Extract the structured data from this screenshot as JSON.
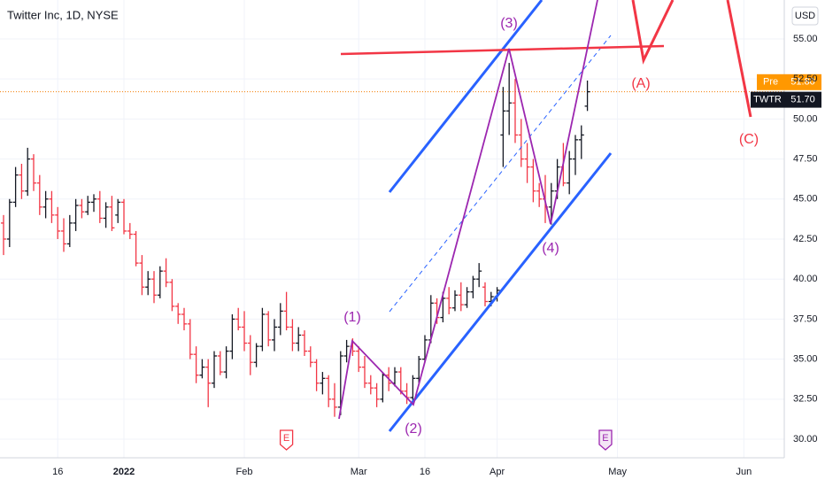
{
  "chart_data": {
    "type": "ohlc",
    "title": "Twitter Inc, 1D, NYSE",
    "currency": "USD",
    "up_color": "#131722",
    "down_color": "#f23645",
    "open": [
      43.5,
      42.5,
      44.8,
      46.5,
      45.5,
      47.5,
      46.0,
      44.5,
      45.0,
      44.0,
      43.0,
      42.2,
      43.5,
      44.6,
      44.2,
      44.8,
      45.0,
      43.8,
      44.5,
      44.0,
      44.8,
      43.0,
      42.8,
      41.0,
      39.5,
      40.0,
      39.0,
      40.5,
      39.8,
      38.3,
      37.8,
      37.2,
      35.3,
      34.0,
      34.5,
      33.5,
      35.2,
      34.2,
      35.5,
      37.5,
      37.0,
      36.0,
      34.8,
      35.8,
      37.8,
      36.2,
      37.0,
      38.0,
      37.0,
      36.0,
      36.5,
      35.5,
      34.8,
      33.5,
      33.8,
      32.5,
      32.0,
      35.2,
      35.8,
      35.5,
      34.5,
      33.5,
      33.2,
      32.5,
      34.0,
      33.5,
      34.2,
      33.0,
      32.6,
      33.8,
      35.0,
      36.2,
      38.5,
      37.6,
      38.8,
      38.2,
      39.0,
      38.4,
      39.2,
      40.0,
      39.5,
      38.6,
      38.9,
      49.0,
      50.5,
      51.0,
      49.0,
      47.5,
      47.0,
      45.5,
      45.0,
      44.5,
      45.5,
      47.0,
      46.0,
      47.5,
      48.7,
      50.8
    ],
    "high": [
      44.0,
      45.0,
      47.0,
      47.2,
      48.2,
      47.8,
      46.5,
      45.5,
      45.5,
      44.5,
      43.8,
      44.0,
      45.0,
      45.0,
      45.2,
      45.3,
      45.5,
      44.8,
      45.2,
      45.0,
      45.0,
      43.5,
      43.0,
      41.5,
      40.5,
      40.5,
      40.8,
      41.3,
      40.0,
      38.5,
      38.2,
      37.5,
      35.8,
      35.0,
      35.0,
      35.5,
      35.5,
      35.8,
      37.8,
      38.2,
      38.0,
      36.5,
      36.0,
      38.2,
      38.0,
      37.5,
      38.5,
      39.2,
      37.5,
      37.0,
      36.8,
      35.8,
      35.0,
      34.2,
      34.0,
      33.5,
      35.5,
      36.2,
      36.3,
      35.8,
      35.2,
      34.0,
      33.5,
      34.2,
      34.5,
      34.5,
      34.5,
      33.5,
      34.0,
      35.2,
      36.5,
      39.0,
      38.8,
      39.2,
      39.5,
      39.3,
      39.8,
      39.5,
      40.2,
      41.0,
      39.8,
      39.2,
      39.5,
      52.0,
      53.5,
      52.5,
      50.0,
      48.5,
      47.5,
      46.0,
      46.5,
      46.0,
      47.5,
      48.5,
      48.0,
      49.0,
      49.6,
      52.4
    ],
    "low": [
      41.5,
      42.0,
      44.5,
      45.0,
      45.2,
      45.5,
      44.0,
      43.8,
      43.5,
      42.5,
      41.7,
      42.0,
      43.0,
      43.8,
      44.0,
      44.2,
      43.5,
      43.2,
      43.0,
      43.5,
      42.8,
      42.5,
      40.8,
      39.0,
      39.0,
      38.5,
      38.8,
      39.5,
      38.0,
      37.2,
      36.8,
      35.0,
      33.5,
      33.8,
      32.0,
      33.2,
      34.0,
      33.8,
      35.0,
      36.8,
      35.5,
      34.0,
      34.5,
      35.5,
      35.8,
      35.5,
      36.5,
      36.8,
      35.5,
      35.5,
      35.2,
      34.5,
      33.0,
      32.8,
      32.0,
      31.4,
      31.5,
      34.8,
      35.2,
      34.2,
      33.2,
      32.8,
      32.0,
      32.3,
      33.0,
      33.3,
      32.8,
      32.2,
      32.3,
      33.5,
      34.8,
      36.0,
      37.2,
      37.3,
      37.8,
      38.0,
      38.0,
      38.2,
      38.8,
      39.5,
      38.3,
      38.3,
      38.6,
      47.0,
      49.0,
      48.5,
      47.0,
      46.0,
      44.8,
      44.5,
      43.5,
      43.4,
      45.0,
      45.8,
      45.3,
      46.5,
      47.5,
      50.5
    ],
    "close": [
      42.5,
      44.8,
      46.5,
      45.5,
      47.5,
      46.0,
      44.5,
      45.0,
      44.0,
      43.0,
      42.2,
      43.5,
      44.6,
      44.2,
      44.8,
      45.0,
      43.8,
      44.5,
      43.2,
      44.8,
      43.0,
      42.8,
      41.0,
      39.5,
      40.0,
      39.0,
      40.5,
      39.8,
      38.3,
      37.8,
      37.2,
      35.3,
      34.0,
      34.5,
      33.5,
      35.2,
      34.2,
      35.5,
      37.5,
      37.0,
      36.0,
      34.8,
      35.8,
      37.8,
      36.2,
      37.0,
      38.0,
      37.0,
      36.0,
      36.5,
      35.5,
      34.8,
      33.5,
      33.8,
      32.5,
      32.0,
      35.2,
      35.8,
      35.5,
      34.5,
      33.5,
      33.2,
      32.5,
      34.0,
      33.5,
      34.2,
      33.0,
      32.6,
      33.8,
      35.0,
      36.2,
      38.5,
      37.6,
      38.8,
      38.2,
      39.0,
      38.4,
      39.2,
      40.0,
      40.5,
      38.6,
      38.9,
      39.3,
      50.5,
      51.0,
      49.0,
      47.5,
      47.0,
      45.5,
      45.0,
      44.5,
      45.5,
      47.0,
      46.0,
      47.5,
      48.7,
      49.0,
      51.7
    ],
    "xlim": [
      -0.59,
      129.71
    ],
    "xticks": [
      {
        "value": 9,
        "label": "16"
      },
      {
        "value": 20,
        "label": "2022"
      },
      {
        "value": 40,
        "label": "Feb"
      },
      {
        "value": 59,
        "label": "Mar"
      },
      {
        "value": 70,
        "label": "16"
      },
      {
        "value": 82,
        "label": "Apr"
      },
      {
        "value": 102,
        "label": "May"
      },
      {
        "value": 123,
        "label": "Jun"
      }
    ],
    "ylim": [
      28.84,
      57.43
    ],
    "yticks": [
      {
        "value": 30,
        "label": "30.00"
      },
      {
        "value": 32.5,
        "label": "32.50"
      },
      {
        "value": 35,
        "label": "35.00"
      },
      {
        "value": 37.5,
        "label": "37.50"
      },
      {
        "value": 40,
        "label": "40.00"
      },
      {
        "value": 42.5,
        "label": "42.50"
      },
      {
        "value": 45,
        "label": "45.00"
      },
      {
        "value": 47.5,
        "label": "47.50"
      },
      {
        "value": 50,
        "label": "50.00"
      },
      {
        "value": 52.5,
        "label": "52.50"
      },
      {
        "value": 55,
        "label": "55.00"
      }
    ],
    "grid": true,
    "price_labels": [
      {
        "name": "Pre",
        "value": 51.8,
        "value_label": "51.80",
        "color": "#ff9800"
      },
      {
        "name": "TWTR",
        "value": 51.7,
        "value_label": "51.70",
        "color": "#131722"
      }
    ],
    "events": [
      {
        "label": "E",
        "x": 47
      },
      {
        "label": "E",
        "x": 100
      }
    ],
    "annotations": [
      {
        "text": "(1)",
        "color": "#9c27b0"
      },
      {
        "text": "(2)",
        "color": "#9c27b0"
      },
      {
        "text": "(3)",
        "color": "#9c27b0"
      },
      {
        "text": "(4)",
        "color": "#9c27b0"
      },
      {
        "text": "(A)",
        "color": "#f23645"
      },
      {
        "text": "(C)",
        "color": "#f23645"
      }
    ]
  }
}
